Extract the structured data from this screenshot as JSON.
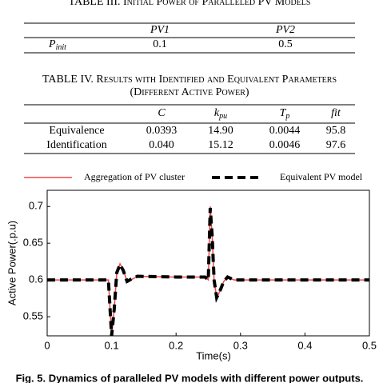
{
  "table3": {
    "caption": "TABLE III. Initial Power of Paralleled PV Models",
    "header": [
      "PV1",
      "PV2"
    ],
    "row_label": {
      "text": "P",
      "sub": "init"
    },
    "row": [
      "0.1",
      "0.5"
    ]
  },
  "table4": {
    "caption": [
      "TABLE IV. Results with Identified and Equivalent Parameters",
      "(Different Active Power)"
    ],
    "header": [
      {
        "text": "C"
      },
      {
        "text": "k",
        "sub": "pu"
      },
      {
        "text": "T",
        "sub": "p"
      },
      {
        "text": "fit"
      }
    ],
    "rows": [
      [
        "Equivalence",
        "0.0393",
        "14.90",
        "0.0044",
        "95.8"
      ],
      [
        "Identification",
        "0.040",
        "15.12",
        "0.0046",
        "97.6"
      ]
    ]
  },
  "chart_data": {
    "type": "line",
    "x_label": "Time(s)",
    "y_label": "Active Power(.p.u)",
    "x": [
      0,
      0.095,
      0.1,
      0.104,
      0.108,
      0.113,
      0.118,
      0.124,
      0.13,
      0.14,
      0.2,
      0.245,
      0.25,
      0.253,
      0.256,
      0.259,
      0.263,
      0.268,
      0.274,
      0.28,
      0.29,
      0.3,
      0.4,
      0.5
    ],
    "series": [
      {
        "name": "Aggregation of PV cluster",
        "color": "#f04848",
        "dash": false,
        "values": [
          0.6,
          0.6,
          0.524,
          0.56,
          0.61,
          0.622,
          0.614,
          0.598,
          0.6,
          0.605,
          0.604,
          0.604,
          0.6,
          0.7,
          0.66,
          0.6,
          0.575,
          0.585,
          0.598,
          0.604,
          0.6,
          0.6,
          0.6,
          0.6
        ]
      },
      {
        "name": "Equivalent PV model",
        "color": "#000000",
        "dash": true,
        "values": [
          0.6,
          0.6,
          0.524,
          0.56,
          0.61,
          0.621,
          0.613,
          0.598,
          0.601,
          0.605,
          0.604,
          0.604,
          0.6,
          0.698,
          0.66,
          0.6,
          0.576,
          0.585,
          0.598,
          0.604,
          0.6,
          0.6,
          0.6,
          0.6
        ]
      }
    ],
    "xlim": [
      0,
      0.5
    ],
    "xticks": [
      0,
      0.1,
      0.2,
      0.3,
      0.4,
      0.5
    ],
    "ylim": [
      0.524,
      0.722
    ],
    "yticks": [
      0.55,
      0.6,
      0.65,
      0.7
    ],
    "grid": false,
    "caption": "Fig. 5. Dynamics of paralleled PV models with different power outputs."
  }
}
